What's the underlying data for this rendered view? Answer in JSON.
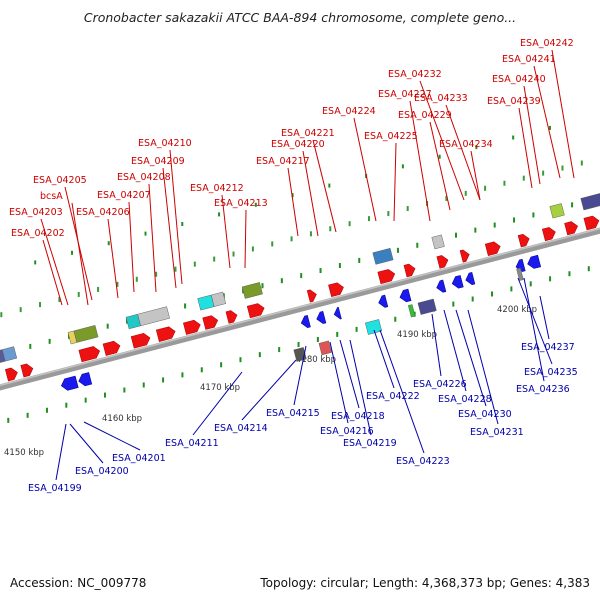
{
  "title": "Cronobacter sakazakii ATCC BAA-894 chromosome, complete geno...",
  "footer": {
    "accession": "Accession: NC_009778",
    "summary": "Topology: circular; Length: 4,368,373 bp; Genes: 4,383"
  },
  "colors": {
    "forward_label": "#cc0000",
    "reverse_label": "#0000aa",
    "forward_gene": "#ee1111",
    "reverse_gene": "#1a1aee",
    "backbone": "#888888",
    "tick": "#1f8f1f"
  },
  "kbp_labels": [
    "4150 kbp",
    "4160 kbp",
    "4170 kbp",
    "4180 kbp",
    "4190 kbp",
    "4200 kbp"
  ],
  "forward_labels": [
    "ESA_04202",
    "ESA_04203",
    "bcsA",
    "ESA_04205",
    "ESA_04206",
    "ESA_04207",
    "ESA_04208",
    "ESA_04209",
    "ESA_04210",
    "ESA_04212",
    "ESA_04213",
    "ESA_04217",
    "ESA_04220",
    "ESA_04221",
    "ESA_04224",
    "ESA_04225",
    "ESA_04227",
    "ESA_04229",
    "ESA_04232",
    "ESA_04233",
    "ESA_04234",
    "ESA_04239",
    "ESA_04240",
    "ESA_04241",
    "ESA_04242"
  ],
  "reverse_labels": [
    "ESA_04199",
    "ESA_04200",
    "ESA_04201",
    "ESA_04211",
    "ESA_04214",
    "ESA_04215",
    "ESA_04216",
    "ESA_04218",
    "ESA_04219",
    "ESA_04222",
    "ESA_04223",
    "ESA_04226",
    "ESA_04228",
    "ESA_04230",
    "ESA_04231",
    "ESA_04235",
    "ESA_04236",
    "ESA_04237"
  ]
}
